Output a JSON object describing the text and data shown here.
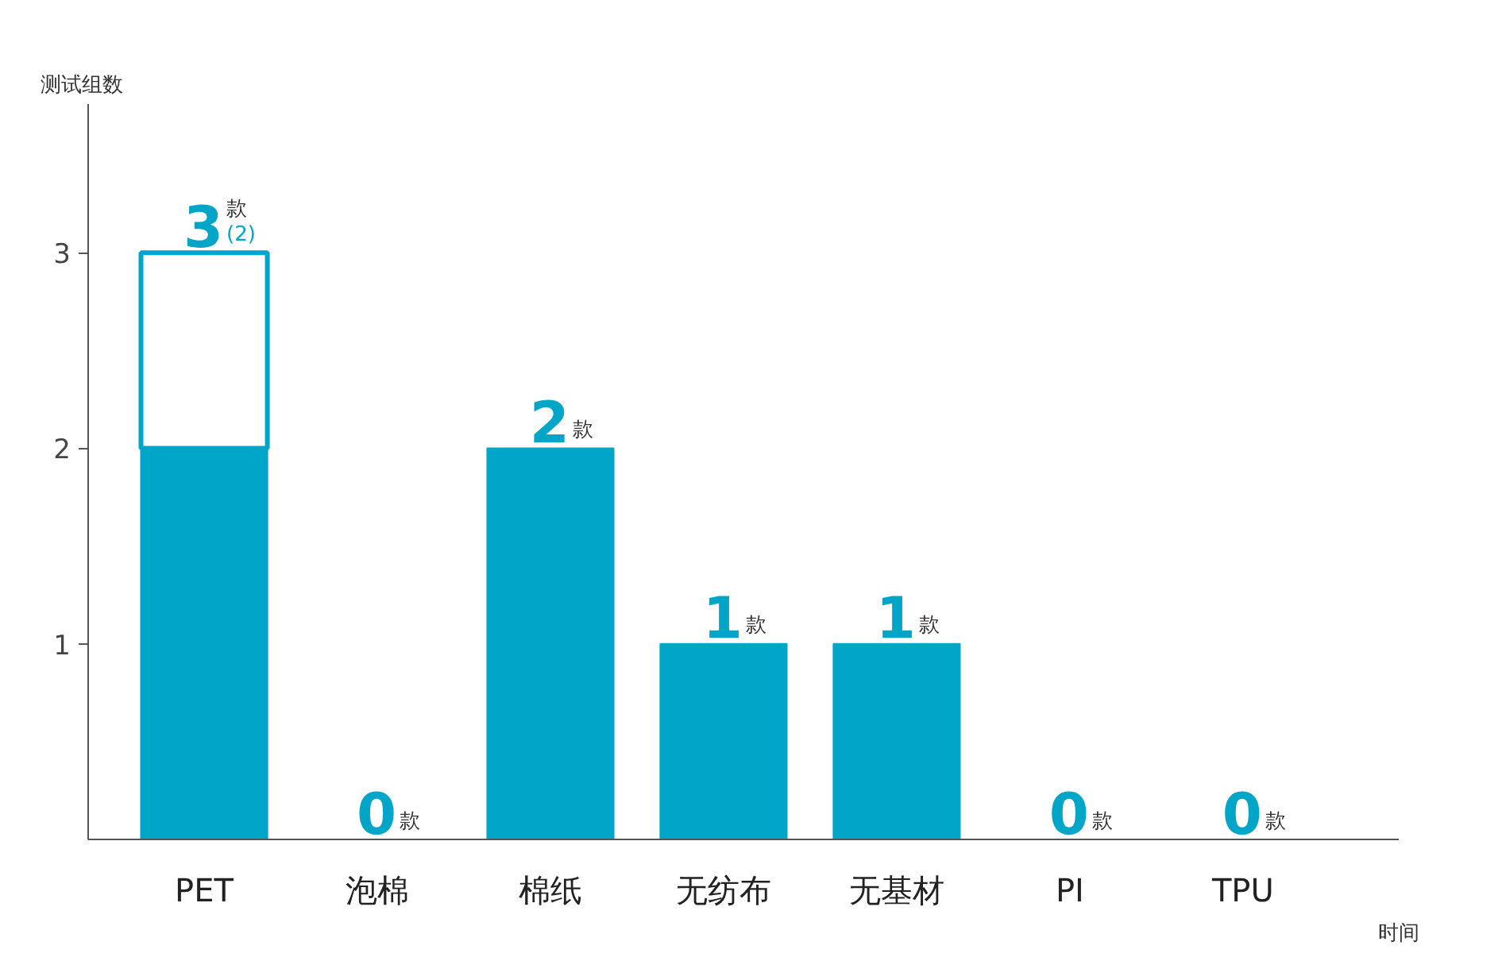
{
  "chart_data": {
    "type": "bar",
    "stacked": true,
    "categories": [
      "PET",
      "泡棉",
      "棉纸",
      "无纺布",
      "无基材",
      "PI",
      "TPU"
    ],
    "ylabel": "测试组数",
    "xlabel": "时间",
    "ylim": [
      0,
      3.76
    ],
    "yticks": [
      1,
      2,
      3
    ],
    "grid": false,
    "series": [
      {
        "color": "#00a5c8",
        "values": [
          2,
          0,
          2,
          1,
          1,
          0,
          0
        ]
      },
      {
        "color": "#ffffff",
        "values": [
          1,
          0,
          0,
          0,
          0,
          0,
          0
        ]
      }
    ],
    "annotations": [
      {
        "text": "(2)",
        "x": "PET",
        "y": 3
      }
    ],
    "totals": [
      "3款",
      "0款",
      "2款",
      "1款",
      "1款",
      "0款",
      "0款"
    ]
  }
}
